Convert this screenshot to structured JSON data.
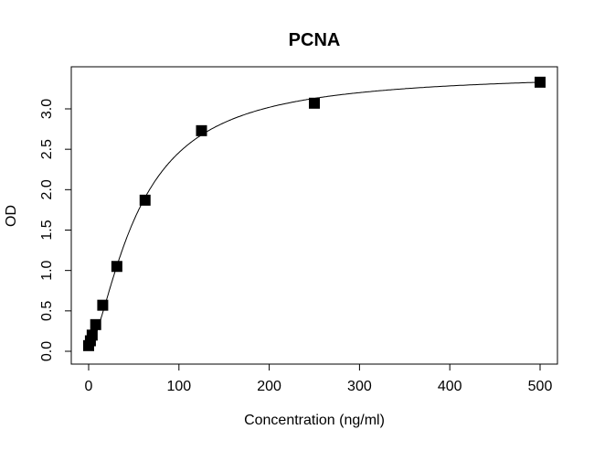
{
  "chart_data": {
    "type": "scatter",
    "title": "PCNA",
    "xlabel": "Concentration (ng/ml)",
    "ylabel": "OD",
    "xlim": [
      0,
      500
    ],
    "ylim": [
      0,
      3.3
    ],
    "xticks": [
      "0",
      "100",
      "200",
      "300",
      "400",
      "500"
    ],
    "yticks": [
      "0.0",
      "0.5",
      "1.0",
      "1.5",
      "2.0",
      "2.5",
      "3.0"
    ],
    "grid": false,
    "legend": "none",
    "fitted_curve": true,
    "marker": "filled-square",
    "color": "#000000",
    "x": [
      0,
      1.95,
      3.9,
      7.8,
      15.6,
      31.25,
      62.5,
      125,
      250,
      500
    ],
    "y": [
      0.07,
      0.13,
      0.2,
      0.33,
      0.57,
      1.05,
      1.87,
      2.73,
      3.07,
      3.33
    ]
  }
}
